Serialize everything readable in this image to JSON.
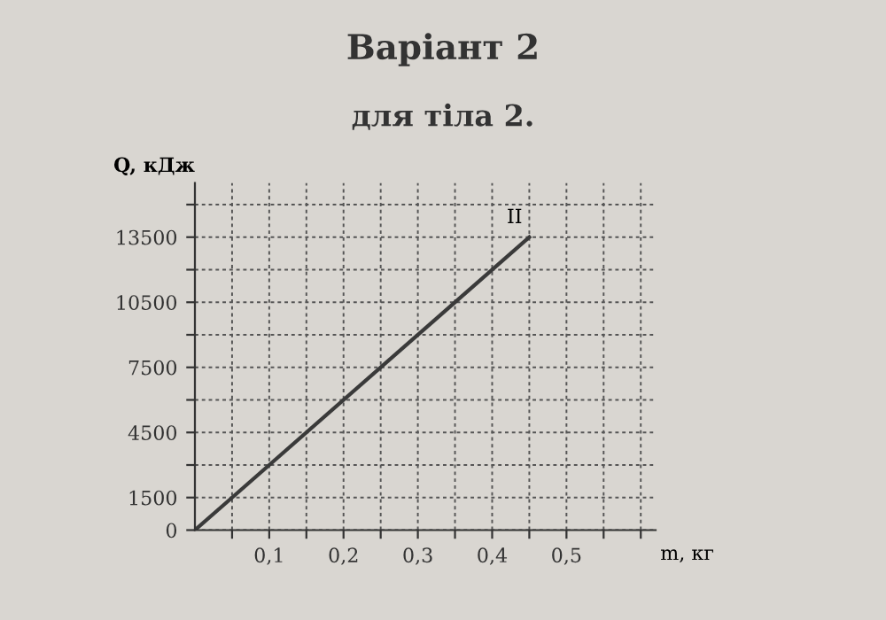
{
  "chart_data": {
    "type": "line",
    "title": "Варіант 2",
    "subtitle": "для тіла 2.",
    "xlabel": "m, кг",
    "ylabel": "Q, кДж",
    "x": [
      0,
      0.45
    ],
    "series": [
      {
        "color": "#3a3a3a",
        "values": [
          0,
          13500
        ]
      }
    ],
    "annotations": [
      {
        "text": "II",
        "x": 0.45,
        "y": 13500
      }
    ],
    "xlim": [
      0,
      0.62
    ],
    "ylim": [
      0,
      16000
    ],
    "xticks": [
      {
        "value": 0.05,
        "label": null
      },
      {
        "value": 0.1,
        "label": "0,1"
      },
      {
        "value": 0.15,
        "label": null
      },
      {
        "value": 0.2,
        "label": "0,2"
      },
      {
        "value": 0.25,
        "label": null
      },
      {
        "value": 0.3,
        "label": "0,3"
      },
      {
        "value": 0.35,
        "label": null
      },
      {
        "value": 0.4,
        "label": "0,4"
      },
      {
        "value": 0.45,
        "label": null
      },
      {
        "value": 0.5,
        "label": "0,5"
      },
      {
        "value": 0.55,
        "label": null
      },
      {
        "value": 0.6,
        "label": null
      }
    ],
    "yticks": [
      0,
      1500,
      {
        "value": 3000,
        "label": null
      },
      4500,
      {
        "value": 6000,
        "label": null
      },
      7500,
      {
        "value": 9000,
        "label": null
      },
      10500,
      {
        "value": 12000,
        "label": null
      },
      13500,
      {
        "value": 15000,
        "label": null
      }
    ],
    "grid": true,
    "marker": "none",
    "line_style": "solid"
  }
}
